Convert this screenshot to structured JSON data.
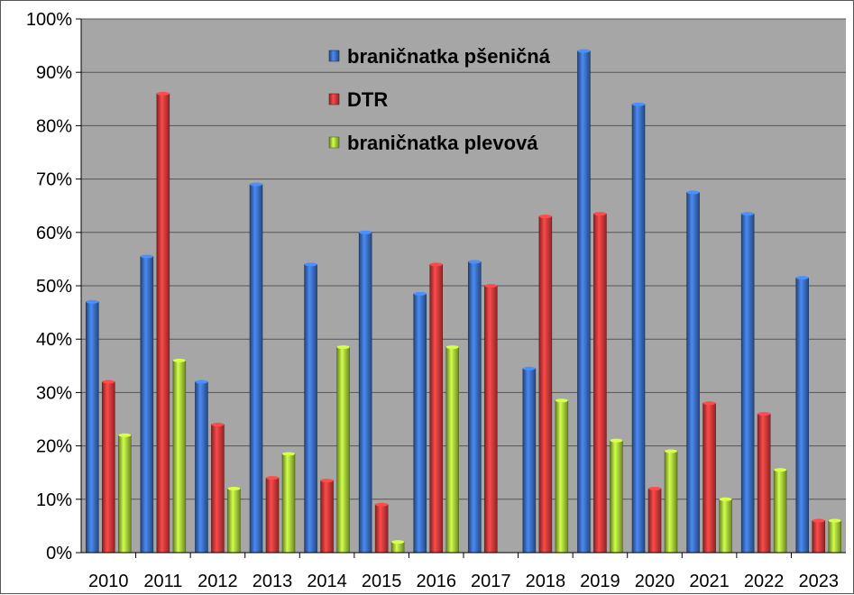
{
  "chart_data": {
    "type": "bar",
    "title": "",
    "xlabel": "",
    "ylabel": "",
    "ylim": [
      0,
      100
    ],
    "y_ticks": [
      "0%",
      "10%",
      "20%",
      "30%",
      "40%",
      "50%",
      "60%",
      "70%",
      "80%",
      "90%",
      "100%"
    ],
    "grid": true,
    "legend_position": "top-center",
    "categories": [
      "2010",
      "2011",
      "2012",
      "2013",
      "2014",
      "2015",
      "2016",
      "2017",
      "2018",
      "2019",
      "2020",
      "2021",
      "2022",
      "2023"
    ],
    "series": [
      {
        "name": "braničnatka pšeničná",
        "color": "#3a6fc4",
        "values": [
          47,
          55.5,
          32,
          69,
          54,
          60,
          48.5,
          54.5,
          34.5,
          94,
          84,
          67.5,
          63.5,
          51.5
        ]
      },
      {
        "name": "DTR",
        "color": "#d83a3a",
        "values": [
          32,
          86,
          24,
          14,
          13.5,
          9,
          54,
          50,
          63,
          63.5,
          12,
          28,
          26,
          6
        ]
      },
      {
        "name": "braničnatka plevová",
        "color": "#a6cf3a",
        "values": [
          22,
          36,
          12,
          18.5,
          38.5,
          2,
          38.5,
          null,
          28.5,
          21,
          19,
          10,
          15.5,
          6
        ]
      }
    ]
  }
}
